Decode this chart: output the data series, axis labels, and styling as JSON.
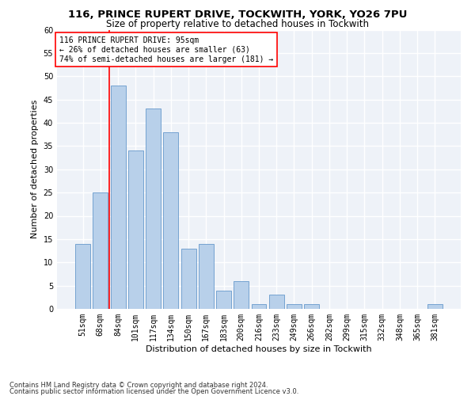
{
  "title1": "116, PRINCE RUPERT DRIVE, TOCKWITH, YORK, YO26 7PU",
  "title2": "Size of property relative to detached houses in Tockwith",
  "xlabel": "Distribution of detached houses by size in Tockwith",
  "ylabel": "Number of detached properties",
  "categories": [
    "51sqm",
    "68sqm",
    "84sqm",
    "101sqm",
    "117sqm",
    "134sqm",
    "150sqm",
    "167sqm",
    "183sqm",
    "200sqm",
    "216sqm",
    "233sqm",
    "249sqm",
    "266sqm",
    "282sqm",
    "299sqm",
    "315sqm",
    "332sqm",
    "348sqm",
    "365sqm",
    "381sqm"
  ],
  "values": [
    14,
    25,
    48,
    34,
    43,
    38,
    13,
    14,
    4,
    6,
    1,
    3,
    1,
    1,
    0,
    0,
    0,
    0,
    0,
    0,
    1
  ],
  "bar_color": "#b8d0ea",
  "bar_edge_color": "#6699cc",
  "annotation_text_line1": "116 PRINCE RUPERT DRIVE: 95sqm",
  "annotation_text_line2": "← 26% of detached houses are smaller (63)",
  "annotation_text_line3": "74% of semi-detached houses are larger (181) →",
  "vline_x": 1.5,
  "vline_color": "red",
  "ylim": [
    0,
    60
  ],
  "yticks": [
    0,
    5,
    10,
    15,
    20,
    25,
    30,
    35,
    40,
    45,
    50,
    55,
    60
  ],
  "footer1": "Contains HM Land Registry data © Crown copyright and database right 2024.",
  "footer2": "Contains public sector information licensed under the Open Government Licence v3.0.",
  "bg_color": "#eef2f8",
  "grid_color": "#ffffff",
  "title1_fontsize": 9.5,
  "title2_fontsize": 8.5,
  "xlabel_fontsize": 8,
  "ylabel_fontsize": 8,
  "tick_fontsize": 7,
  "annotation_fontsize": 7,
  "footer_fontsize": 6
}
